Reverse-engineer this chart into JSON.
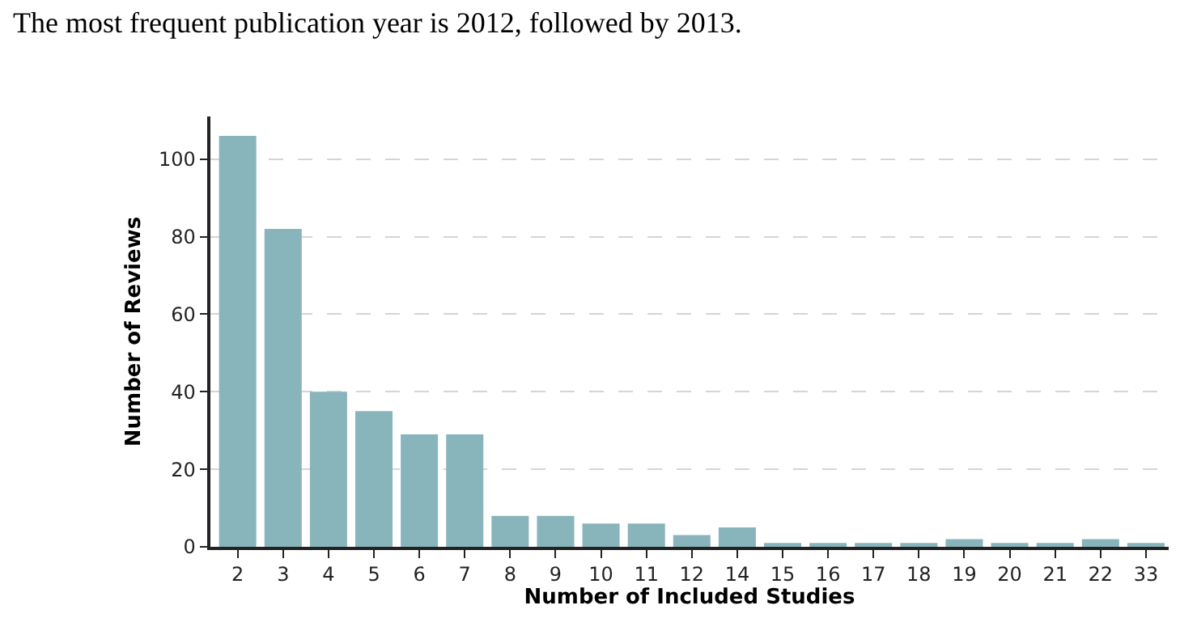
{
  "chart_data": {
    "type": "bar",
    "xlabel": "Number of Included Studies",
    "ylabel": "Number of Reviews",
    "annotations": [
      "The most frequent publication year is 2012, followed by 2013."
    ],
    "categories": [
      "2",
      "3",
      "4",
      "5",
      "6",
      "7",
      "8",
      "9",
      "10",
      "11",
      "12",
      "14",
      "15",
      "16",
      "17",
      "18",
      "19",
      "20",
      "21",
      "22",
      "33"
    ],
    "values": [
      106,
      82,
      40,
      35,
      29,
      29,
      8,
      8,
      6,
      6,
      3,
      5,
      1,
      1,
      1,
      1,
      2,
      1,
      1,
      2,
      1
    ],
    "color": "#88b4bb",
    "ylim": [
      0,
      111
    ],
    "yticks": [
      0,
      20,
      40,
      60,
      80,
      100
    ],
    "grid": "y"
  }
}
